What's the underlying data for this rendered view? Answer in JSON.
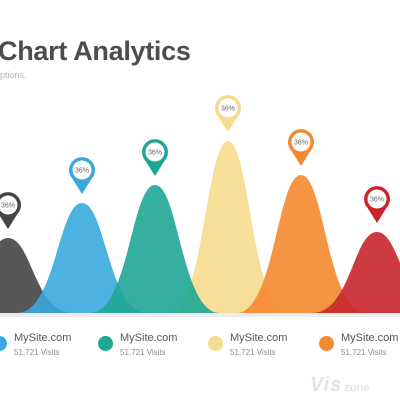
{
  "header": {
    "title": "Chart Analytics",
    "subtitle": "ptions."
  },
  "chart_data": {
    "type": "area",
    "title": "Chart Analytics",
    "series": [
      {
        "value": 36,
        "label": "36%",
        "color": "#454545"
      },
      {
        "value": 36,
        "label": "36%",
        "color": "#3aa8de"
      },
      {
        "value": 36,
        "label": "36%",
        "color": "#1fa796"
      },
      {
        "value": 36,
        "label": "36%",
        "color": "#f6dc8e"
      },
      {
        "value": 36,
        "label": "36%",
        "color": "#f48a30"
      },
      {
        "value": 36,
        "label": "36%",
        "color": "#c8262c"
      }
    ]
  },
  "legend": [
    {
      "site": "MySite.com",
      "visits": "51,721 Visits",
      "color": "#3aa8de"
    },
    {
      "site": "MySite.com",
      "visits": "51,721 Visits",
      "color": "#1fa796"
    },
    {
      "site": "MySite.com",
      "visits": "51,721 Visits",
      "color": "#f6dc8e"
    },
    {
      "site": "MySite.com",
      "visits": "51,721 Visits",
      "color": "#f48a30"
    }
  ],
  "watermark": {
    "main": "Vis",
    "sub": "zone"
  }
}
